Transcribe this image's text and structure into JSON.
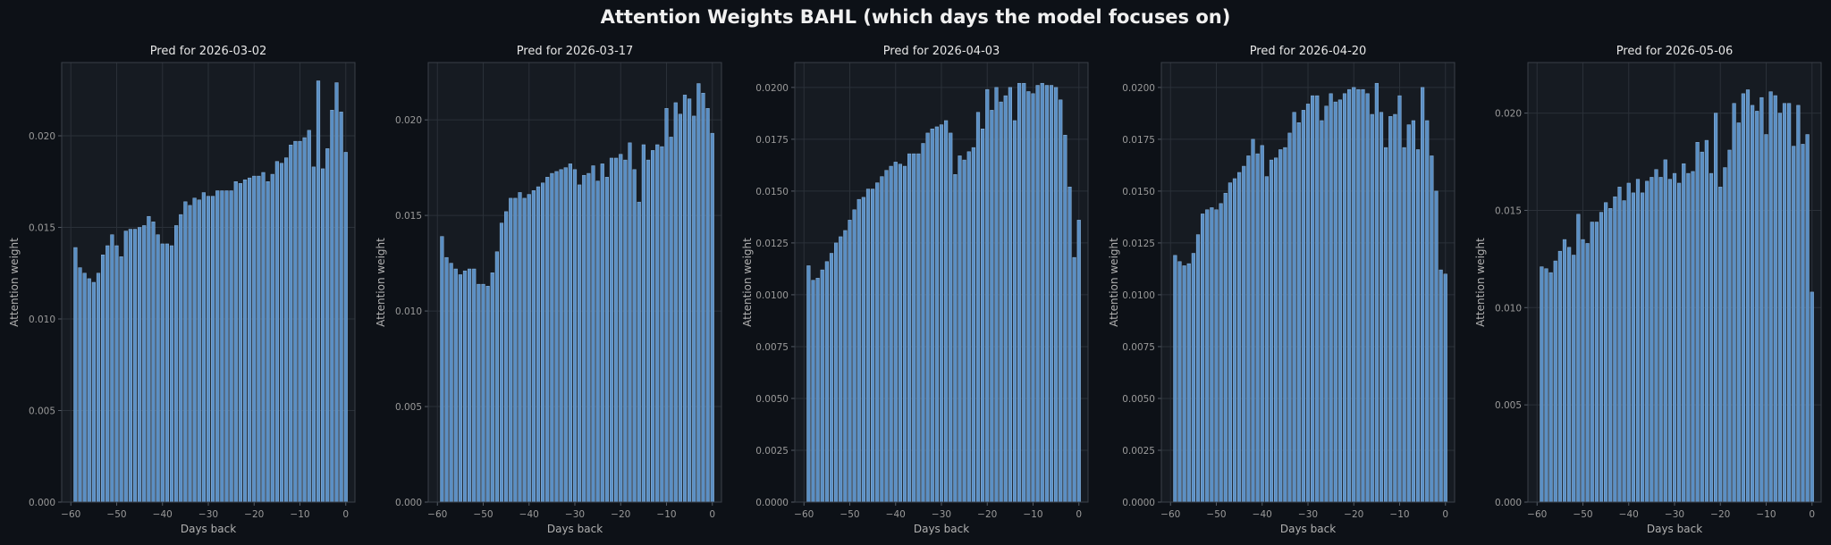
{
  "figure": {
    "title": "Attention Weights  BAHL (which days the model focuses on)"
  },
  "colors": {
    "background": "#0d1117",
    "panel": "#161b22",
    "bar": "#5b8fc4",
    "bar_edge": "#8fb8e0",
    "grid": "#2a3038",
    "text": "#e6e6e6"
  },
  "chart_data": [
    {
      "type": "bar",
      "title": "Pred for 2026-03-02",
      "xlabel": "Days back",
      "ylabel": "Attention weight",
      "grid": true,
      "xlim": [
        -62,
        2
      ],
      "ylim": [
        0,
        0.024
      ],
      "xticks": [
        -60,
        -50,
        -40,
        -30,
        -20,
        -10,
        0
      ],
      "xtick_labels": [
        "−60",
        "−50",
        "−40",
        "−30",
        "−20",
        "−10",
        "0"
      ],
      "yticks": [
        0,
        0.005,
        0.01,
        0.015,
        0.02
      ],
      "ytick_labels": [
        "0.000",
        "0.005",
        "0.010",
        "0.015",
        "0.020"
      ],
      "x": [
        -59,
        -58,
        -57,
        -56,
        -55,
        -54,
        -53,
        -52,
        -51,
        -50,
        -49,
        -48,
        -47,
        -46,
        -45,
        -44,
        -43,
        -42,
        -41,
        -40,
        -39,
        -38,
        -37,
        -36,
        -35,
        -34,
        -33,
        -32,
        -31,
        -30,
        -29,
        -28,
        -27,
        -26,
        -25,
        -24,
        -23,
        -22,
        -21,
        -20,
        -19,
        -18,
        -17,
        -16,
        -15,
        -14,
        -13,
        -12,
        -11,
        -10,
        -9,
        -8,
        -7,
        -6,
        -5,
        -4,
        -3,
        -2,
        -1,
        0
      ],
      "values": [
        0.0139,
        0.0128,
        0.0125,
        0.0122,
        0.012,
        0.0125,
        0.0135,
        0.014,
        0.0146,
        0.014,
        0.0134,
        0.0148,
        0.0149,
        0.0149,
        0.015,
        0.0151,
        0.0156,
        0.0153,
        0.0146,
        0.0141,
        0.0141,
        0.014,
        0.0151,
        0.0157,
        0.0164,
        0.0162,
        0.0166,
        0.0165,
        0.0169,
        0.0167,
        0.0167,
        0.017,
        0.017,
        0.017,
        0.017,
        0.0175,
        0.0174,
        0.0176,
        0.0177,
        0.0178,
        0.0178,
        0.018,
        0.0175,
        0.0179,
        0.0186,
        0.0185,
        0.0188,
        0.0195,
        0.0197,
        0.0197,
        0.0199,
        0.0203,
        0.0183,
        0.023,
        0.0182,
        0.0193,
        0.0214,
        0.0229,
        0.0213,
        0.0191
      ]
    },
    {
      "type": "bar",
      "title": "Pred for 2026-03-17",
      "xlabel": "Days back",
      "ylabel": "Attention weight",
      "grid": true,
      "xlim": [
        -62,
        2
      ],
      "ylim": [
        0,
        0.023
      ],
      "xticks": [
        -60,
        -50,
        -40,
        -30,
        -20,
        -10,
        0
      ],
      "xtick_labels": [
        "−60",
        "−50",
        "−40",
        "−30",
        "−20",
        "−10",
        "0"
      ],
      "yticks": [
        0,
        0.005,
        0.01,
        0.015,
        0.02
      ],
      "ytick_labels": [
        "0.000",
        "0.005",
        "0.010",
        "0.015",
        "0.020"
      ],
      "x": [
        -59,
        -58,
        -57,
        -56,
        -55,
        -54,
        -53,
        -52,
        -51,
        -50,
        -49,
        -48,
        -47,
        -46,
        -45,
        -44,
        -43,
        -42,
        -41,
        -40,
        -39,
        -38,
        -37,
        -36,
        -35,
        -34,
        -33,
        -32,
        -31,
        -30,
        -29,
        -28,
        -27,
        -26,
        -25,
        -24,
        -23,
        -22,
        -21,
        -20,
        -19,
        -18,
        -17,
        -16,
        -15,
        -14,
        -13,
        -12,
        -11,
        -10,
        -9,
        -8,
        -7,
        -6,
        -5,
        -4,
        -3,
        -2,
        -1,
        0
      ],
      "values": [
        0.0139,
        0.0128,
        0.0125,
        0.0122,
        0.0119,
        0.0121,
        0.0122,
        0.0122,
        0.0114,
        0.0114,
        0.0113,
        0.012,
        0.0131,
        0.0146,
        0.0152,
        0.0159,
        0.0159,
        0.0162,
        0.0159,
        0.0161,
        0.0163,
        0.0165,
        0.0167,
        0.017,
        0.0172,
        0.0173,
        0.0174,
        0.0175,
        0.0177,
        0.0174,
        0.0166,
        0.0171,
        0.0172,
        0.0176,
        0.0168,
        0.0177,
        0.017,
        0.018,
        0.018,
        0.0182,
        0.0179,
        0.0188,
        0.0174,
        0.0157,
        0.0187,
        0.0179,
        0.0184,
        0.0187,
        0.0186,
        0.0206,
        0.0191,
        0.0209,
        0.0203,
        0.0213,
        0.0211,
        0.0202,
        0.0219,
        0.0214,
        0.0206,
        0.0193
      ]
    },
    {
      "type": "bar",
      "title": "Pred for 2026-04-03",
      "xlabel": "Days back",
      "ylabel": "Attention weight",
      "grid": true,
      "xlim": [
        -62,
        2
      ],
      "ylim": [
        0,
        0.0212
      ],
      "xticks": [
        -60,
        -50,
        -40,
        -30,
        -20,
        -10,
        0
      ],
      "xtick_labels": [
        "−60",
        "−50",
        "−40",
        "−30",
        "−20",
        "−10",
        "0"
      ],
      "yticks": [
        0,
        0.0025,
        0.005,
        0.0075,
        0.01,
        0.0125,
        0.015,
        0.0175,
        0.02
      ],
      "ytick_labels": [
        "0.0000",
        "0.0025",
        "0.0050",
        "0.0075",
        "0.0100",
        "0.0125",
        "0.0150",
        "0.0175",
        "0.0200"
      ],
      "x": [
        -59,
        -58,
        -57,
        -56,
        -55,
        -54,
        -53,
        -52,
        -51,
        -50,
        -49,
        -48,
        -47,
        -46,
        -45,
        -44,
        -43,
        -42,
        -41,
        -40,
        -39,
        -38,
        -37,
        -36,
        -35,
        -34,
        -33,
        -32,
        -31,
        -30,
        -29,
        -28,
        -27,
        -26,
        -25,
        -24,
        -23,
        -22,
        -21,
        -20,
        -19,
        -18,
        -17,
        -16,
        -15,
        -14,
        -13,
        -12,
        -11,
        -10,
        -9,
        -8,
        -7,
        -6,
        -5,
        -4,
        -3,
        -2,
        -1,
        0
      ],
      "values": [
        0.0114,
        0.0107,
        0.0108,
        0.0112,
        0.0116,
        0.012,
        0.0125,
        0.0128,
        0.0131,
        0.0136,
        0.0141,
        0.0146,
        0.0147,
        0.0151,
        0.0151,
        0.0154,
        0.0157,
        0.016,
        0.0162,
        0.0164,
        0.0163,
        0.0162,
        0.0168,
        0.0168,
        0.0168,
        0.0173,
        0.0178,
        0.018,
        0.0181,
        0.0182,
        0.0184,
        0.0178,
        0.0158,
        0.0167,
        0.0165,
        0.0169,
        0.0171,
        0.0188,
        0.018,
        0.0199,
        0.0189,
        0.02,
        0.0193,
        0.0196,
        0.02,
        0.0184,
        0.0202,
        0.0202,
        0.0198,
        0.0197,
        0.0201,
        0.0202,
        0.0201,
        0.0201,
        0.02,
        0.0194,
        0.0177,
        0.0152,
        0.0118,
        0.0136
      ]
    },
    {
      "type": "bar",
      "title": "Pred for 2026-04-20",
      "xlabel": "Days back",
      "ylabel": "Attention weight",
      "grid": true,
      "xlim": [
        -62,
        2
      ],
      "ylim": [
        0,
        0.0212
      ],
      "xticks": [
        -60,
        -50,
        -40,
        -30,
        -20,
        -10,
        0
      ],
      "xtick_labels": [
        "−60",
        "−50",
        "−40",
        "−30",
        "−20",
        "−10",
        "0"
      ],
      "yticks": [
        0,
        0.0025,
        0.005,
        0.0075,
        0.01,
        0.0125,
        0.015,
        0.0175,
        0.02
      ],
      "ytick_labels": [
        "0.0000",
        "0.0025",
        "0.0050",
        "0.0075",
        "0.0100",
        "0.0125",
        "0.0150",
        "0.0175",
        "0.0200"
      ],
      "x": [
        -59,
        -58,
        -57,
        -56,
        -55,
        -54,
        -53,
        -52,
        -51,
        -50,
        -49,
        -48,
        -47,
        -46,
        -45,
        -44,
        -43,
        -42,
        -41,
        -40,
        -39,
        -38,
        -37,
        -36,
        -35,
        -34,
        -33,
        -32,
        -31,
        -30,
        -29,
        -28,
        -27,
        -26,
        -25,
        -24,
        -23,
        -22,
        -21,
        -20,
        -19,
        -18,
        -17,
        -16,
        -15,
        -14,
        -13,
        -12,
        -11,
        -10,
        -9,
        -8,
        -7,
        -6,
        -5,
        -4,
        -3,
        -2,
        -1,
        0
      ],
      "values": [
        0.0119,
        0.0116,
        0.0114,
        0.0115,
        0.012,
        0.0129,
        0.0139,
        0.0141,
        0.0142,
        0.0141,
        0.0144,
        0.0149,
        0.0154,
        0.0156,
        0.0159,
        0.0162,
        0.0167,
        0.0175,
        0.0168,
        0.0172,
        0.0157,
        0.0165,
        0.0166,
        0.017,
        0.0171,
        0.0178,
        0.0188,
        0.0183,
        0.0189,
        0.0192,
        0.0196,
        0.0196,
        0.0184,
        0.0191,
        0.0197,
        0.0193,
        0.0194,
        0.0197,
        0.0199,
        0.02,
        0.0199,
        0.0199,
        0.0197,
        0.0187,
        0.0202,
        0.0188,
        0.0171,
        0.0186,
        0.0187,
        0.0196,
        0.0171,
        0.0182,
        0.0184,
        0.017,
        0.02,
        0.0184,
        0.0167,
        0.015,
        0.0112,
        0.011
      ]
    },
    {
      "type": "bar",
      "title": "Pred for 2026-05-06",
      "xlabel": "Days back",
      "ylabel": "Attention weight",
      "grid": true,
      "xlim": [
        -62,
        2
      ],
      "ylim": [
        0,
        0.0226
      ],
      "xticks": [
        -60,
        -50,
        -40,
        -30,
        -20,
        -10,
        0
      ],
      "xtick_labels": [
        "−60",
        "−50",
        "−40",
        "−30",
        "−20",
        "−10",
        "0"
      ],
      "yticks": [
        0,
        0.005,
        0.01,
        0.015,
        0.02
      ],
      "ytick_labels": [
        "0.000",
        "0.005",
        "0.010",
        "0.015",
        "0.020"
      ],
      "x": [
        -59,
        -58,
        -57,
        -56,
        -55,
        -54,
        -53,
        -52,
        -51,
        -50,
        -49,
        -48,
        -47,
        -46,
        -45,
        -44,
        -43,
        -42,
        -41,
        -40,
        -39,
        -38,
        -37,
        -36,
        -35,
        -34,
        -33,
        -32,
        -31,
        -30,
        -29,
        -28,
        -27,
        -26,
        -25,
        -24,
        -23,
        -22,
        -21,
        -20,
        -19,
        -18,
        -17,
        -16,
        -15,
        -14,
        -13,
        -12,
        -11,
        -10,
        -9,
        -8,
        -7,
        -6,
        -5,
        -4,
        -3,
        -2,
        -1,
        0
      ],
      "values": [
        0.0121,
        0.012,
        0.0118,
        0.0124,
        0.0129,
        0.0135,
        0.0131,
        0.0127,
        0.0148,
        0.0135,
        0.0133,
        0.0144,
        0.0144,
        0.0149,
        0.0154,
        0.0151,
        0.0157,
        0.0162,
        0.0155,
        0.0164,
        0.0159,
        0.0166,
        0.0159,
        0.0165,
        0.0167,
        0.0171,
        0.0167,
        0.0176,
        0.0166,
        0.0169,
        0.0164,
        0.0174,
        0.0169,
        0.017,
        0.0185,
        0.018,
        0.0186,
        0.0169,
        0.02,
        0.0162,
        0.0172,
        0.0181,
        0.0205,
        0.0195,
        0.021,
        0.0212,
        0.0204,
        0.0201,
        0.0208,
        0.0189,
        0.0211,
        0.0209,
        0.02,
        0.0205,
        0.0205,
        0.0183,
        0.0204,
        0.0184,
        0.0189,
        0.0108
      ]
    }
  ]
}
